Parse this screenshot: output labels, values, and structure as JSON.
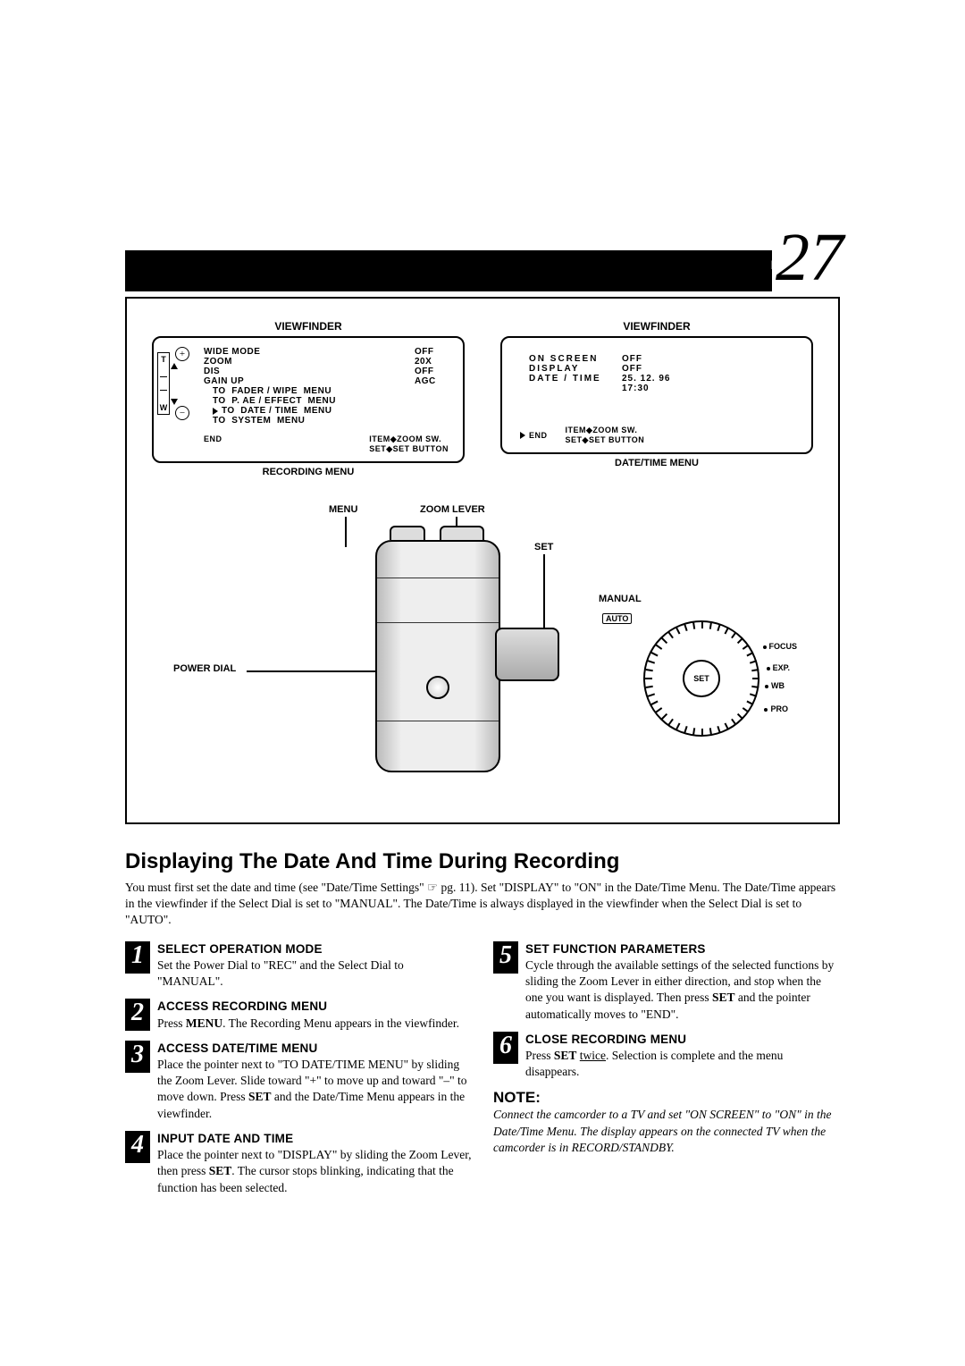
{
  "page": {
    "lang": "EN",
    "number": "27"
  },
  "viewfinder_left": {
    "title": "VIEWFINDER",
    "rows": [
      {
        "k": "WIDE MODE",
        "v": "OFF"
      },
      {
        "k": "ZOOM",
        "v": "20X"
      },
      {
        "k": "DIS",
        "v": "OFF"
      },
      {
        "k": "GAIN UP",
        "v": "AGC"
      }
    ],
    "subs": [
      "TO  FADER / WIPE  MENU",
      "TO  P. AE / EFFECT  MENU",
      "TO  DATE / TIME  MENU",
      "TO  SYSTEM  MENU"
    ],
    "foot_end": "END",
    "foot_item": "ITEM◆ZOOM SW.",
    "foot_set": "SET◆SET BUTTON",
    "caption": "RECORDING MENU"
  },
  "viewfinder_right": {
    "title": "VIEWFINDER",
    "rows": [
      {
        "k": "ON SCREEN",
        "v": "OFF"
      },
      {
        "k": "DISPLAY",
        "v": "OFF"
      },
      {
        "k": "DATE / TIME",
        "v": "25. 12. 96"
      }
    ],
    "time": "17:30",
    "foot_end": "END",
    "foot_item": "ITEM◆ZOOM SW.",
    "foot_set": "SET◆SET BUTTON",
    "caption": "DATE/TIME MENU"
  },
  "labels": {
    "menu": "MENU",
    "zoom_lever": "ZOOM LEVER",
    "set": "SET",
    "manual": "MANUAL",
    "auto": "AUTO",
    "focus": "FOCUS",
    "exp": "EXP.",
    "wb": "WB",
    "pro": "PRO",
    "power_dial": "POWER DIAL",
    "dial_set": "SET",
    "t": "T",
    "w": "W"
  },
  "title": "Displaying The Date And Time During Recording",
  "intro": "You must first set the date and time (see \"Date/Time Settings\" ☞ pg. 11). Set \"DISPLAY\" to \"ON\" in the Date/Time Menu. The Date/Time appears in the viewfinder if the Select Dial is set to \"MANUAL\". The Date/Time is always displayed in the viewfinder when the Select Dial is set to \"AUTO\".",
  "steps_left": [
    {
      "n": "1",
      "t": "SELECT OPERATION MODE",
      "b": "Set the Power Dial to \"REC\" and the Select Dial to \"MANUAL\"."
    },
    {
      "n": "2",
      "t": "ACCESS RECORDING MENU",
      "b": "Press <b>MENU</b>. The Recording Menu appears in the viewfinder."
    },
    {
      "n": "3",
      "t": "ACCESS DATE/TIME MENU",
      "b": "Place the pointer next to \"TO DATE/TIME MENU\" by sliding the Zoom Lever. Slide toward \"+\" to move up and toward \"–\" to move down. Press <b>SET</b> and the Date/Time Menu appears in the viewfinder."
    },
    {
      "n": "4",
      "t": "INPUT DATE AND TIME",
      "b": "Place the pointer next to \"DISPLAY\" by sliding the Zoom Lever, then press <b>SET</b>. The cursor stops blinking, indicating that the function has been selected."
    }
  ],
  "steps_right": [
    {
      "n": "5",
      "t": "SET FUNCTION PARAMETERS",
      "b": "Cycle through the available settings of the selected functions by sliding the Zoom Lever in either direction, and stop when the one you want is displayed. Then press <b>SET</b> and the pointer automatically moves to \"END\"."
    },
    {
      "n": "6",
      "t": "CLOSE RECORDING MENU",
      "b": "Press <b>SET</b> <u>twice</u>. Selection is complete and the menu disappears."
    }
  ],
  "note": {
    "title": "NOTE:",
    "body": "Connect the camcorder to a TV and set \"ON SCREEN\" to \"ON\" in the Date/Time Menu. The display appears on the connected TV when the camcorder is in RECORD/STANDBY."
  }
}
